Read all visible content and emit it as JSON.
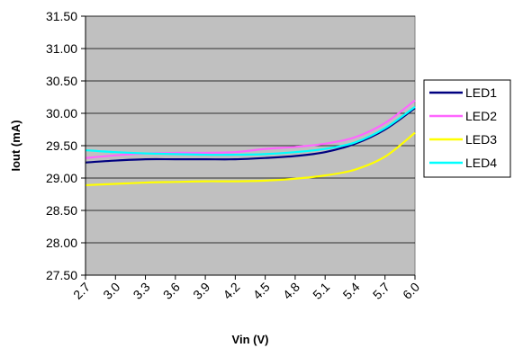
{
  "chart_data": {
    "type": "line",
    "title": "",
    "xlabel": "Vin (V)",
    "ylabel": "Iout (mA)",
    "x": [
      2.7,
      3.0,
      3.3,
      3.6,
      3.9,
      4.2,
      4.5,
      4.8,
      5.1,
      5.4,
      5.7,
      6.0
    ],
    "x_tick_labels": [
      "2.7",
      "3.0",
      "3.3",
      "3.6",
      "3.9",
      "4.2",
      "4.5",
      "4.8",
      "5.1",
      "5.4",
      "5.7",
      "6.0"
    ],
    "y_tick_labels": [
      "27.50",
      "28.00",
      "28.50",
      "29.00",
      "29.50",
      "30.00",
      "30.50",
      "31.00",
      "31.50"
    ],
    "ylim": [
      27.5,
      31.5
    ],
    "xlim": [
      2.7,
      6.0
    ],
    "grid": true,
    "plot_background": "#C0C0C0",
    "legend_position": "right",
    "series": [
      {
        "name": "LED1",
        "color": "#000080",
        "values": [
          29.24,
          29.27,
          29.29,
          29.29,
          29.29,
          29.29,
          29.31,
          29.34,
          29.4,
          29.53,
          29.75,
          30.08
        ]
      },
      {
        "name": "LED2",
        "color": "#FF66FF",
        "values": [
          29.31,
          29.35,
          29.38,
          29.39,
          29.39,
          29.4,
          29.45,
          29.48,
          29.53,
          29.63,
          29.85,
          30.2
        ]
      },
      {
        "name": "LED3",
        "color": "#FFFF00",
        "values": [
          28.89,
          28.91,
          28.93,
          28.94,
          28.95,
          28.95,
          28.96,
          28.99,
          29.04,
          29.13,
          29.33,
          29.7
        ]
      },
      {
        "name": "LED4",
        "color": "#00FFFF",
        "values": [
          29.43,
          29.4,
          29.38,
          29.37,
          29.36,
          29.36,
          29.37,
          29.4,
          29.45,
          29.55,
          29.77,
          30.1
        ]
      }
    ]
  }
}
